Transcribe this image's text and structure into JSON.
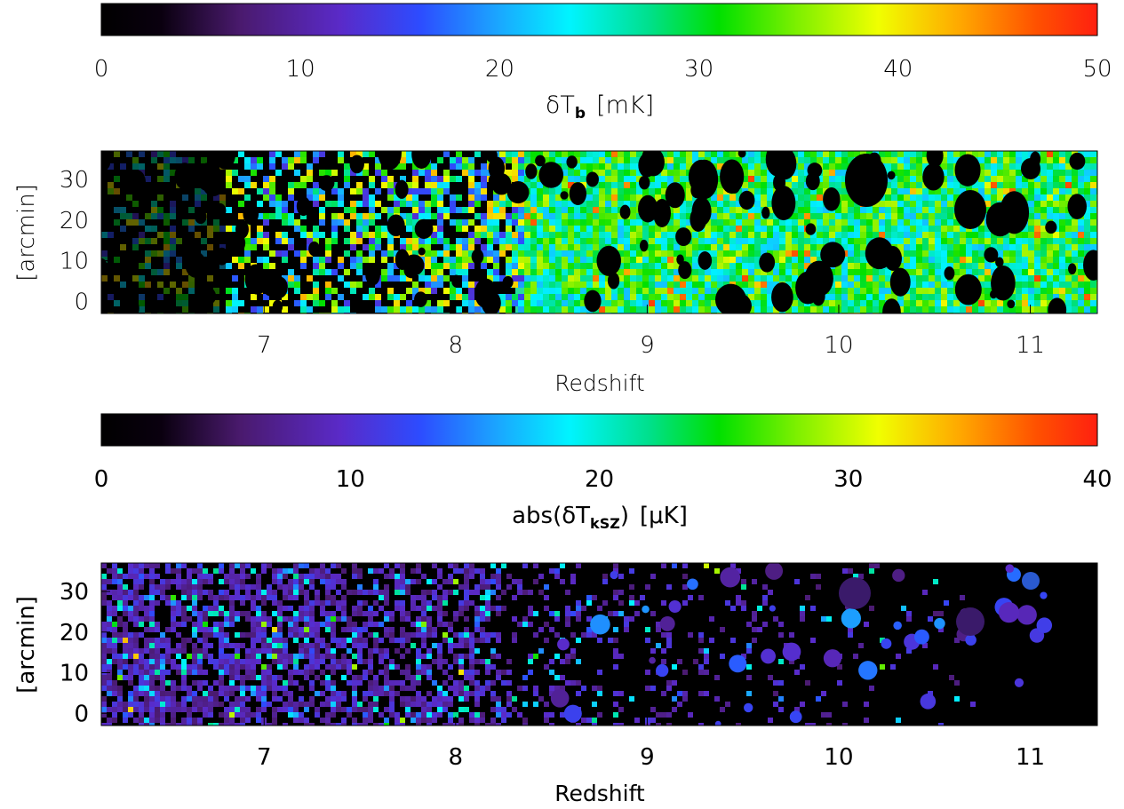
{
  "chart_data": [
    {
      "type": "colorbar",
      "colormap": "rainbow (black-purple-blue-cyan-green-yellow-red)",
      "range": [
        0,
        50
      ],
      "ticks": [
        "0",
        "10",
        "20",
        "30",
        "40",
        "50"
      ],
      "label": {
        "main": "δT",
        "sub": "b",
        "unit": "[mK]"
      }
    },
    {
      "type": "heatmap",
      "description_source": "21-cm brightness temperature lightcone",
      "xlabel": "Redshift",
      "ylabel": "[arcmin]",
      "xlim": [
        6.15,
        11.35
      ],
      "ylim": [
        -3,
        37
      ],
      "xticks": [
        "7",
        "8",
        "9",
        "10",
        "11"
      ],
      "yticks": [
        "0",
        "10",
        "20",
        "30"
      ]
    },
    {
      "type": "colorbar",
      "colormap": "rainbow (black-purple-blue-cyan-green-yellow-red)",
      "range": [
        0,
        40
      ],
      "ticks": [
        "0",
        "10",
        "20",
        "30",
        "40"
      ],
      "label": {
        "main": "abs(δT",
        "sub": "kSZ",
        "close": ")",
        "unit": "[μK]"
      }
    },
    {
      "type": "heatmap",
      "xlabel": "Redshift",
      "ylabel": "[arcmin]",
      "xlim": [
        6.15,
        11.35
      ],
      "ylim": [
        -3,
        37
      ],
      "xticks": [
        "7",
        "8",
        "9",
        "10",
        "11"
      ],
      "yticks": [
        "0",
        "10",
        "20",
        "30"
      ]
    }
  ]
}
